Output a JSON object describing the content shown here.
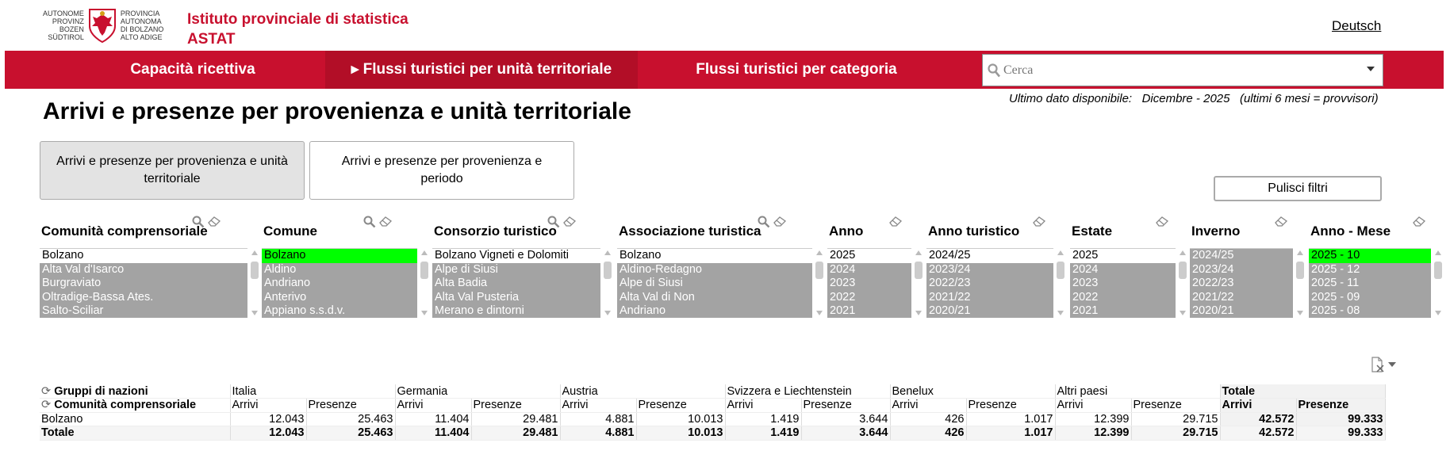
{
  "header": {
    "logo_left_lines": [
      "AUTONOME",
      "PROVINZ",
      "BOZEN",
      "SÜDTIROL"
    ],
    "logo_right_lines": [
      "PROVINCIA",
      "AUTONOMA",
      "DI BOLZANO",
      "ALTO ADIGE"
    ],
    "org_line1": "Istituto provinciale di statistica",
    "org_line2": "ASTAT",
    "language_link": "Deutsch"
  },
  "nav": {
    "items": [
      {
        "label": "Capacità ricettiva",
        "active": false
      },
      {
        "label": "▸ Flussi turistici per unità territoriale",
        "active": true
      },
      {
        "label": "Flussi turistici per categoria",
        "active": false
      }
    ],
    "search_placeholder": "Cerca"
  },
  "last_data": "Ultimo dato disponibile:   Dicembre - 2025   (ultimi 6 mesi = provvisori)",
  "page_title": "Arrivi e presenze per provenienza e unità territoriale",
  "tabs": [
    {
      "label": "Arrivi e presenze per provenienza e unità territoriale",
      "active": true
    },
    {
      "label": "Arrivi e presenze per provenienza e periodo",
      "active": false
    }
  ],
  "clear_filters_label": "Pulisci filtri",
  "filters": [
    {
      "title": "Comunità comprensoriale",
      "has_search": true,
      "items": [
        {
          "t": "Bolzano",
          "s": "sel"
        },
        {
          "t": "Alta Val d'Isarco",
          "s": "excl"
        },
        {
          "t": "Burgraviato",
          "s": "excl"
        },
        {
          "t": "Oltradige-Bassa Ates.",
          "s": "excl"
        },
        {
          "t": "Salto-Sciliar",
          "s": "excl"
        }
      ]
    },
    {
      "title": "Comune",
      "has_search": true,
      "items": [
        {
          "t": "Bolzano",
          "s": "green"
        },
        {
          "t": "Aldino",
          "s": "excl"
        },
        {
          "t": "Andriano",
          "s": "excl"
        },
        {
          "t": "Anterivo",
          "s": "excl"
        },
        {
          "t": "Appiano s.s.d.v.",
          "s": "excl"
        }
      ]
    },
    {
      "title": "Consorzio turistico",
      "has_search": true,
      "items": [
        {
          "t": "Bolzano Vigneti e Dolomiti",
          "s": "sel"
        },
        {
          "t": "Alpe di Siusi",
          "s": "excl"
        },
        {
          "t": "Alta Badia",
          "s": "excl"
        },
        {
          "t": "Alta Val Pusteria",
          "s": "excl"
        },
        {
          "t": "Merano e dintorni",
          "s": "excl"
        }
      ]
    },
    {
      "title": "Associazione turistica",
      "has_search": true,
      "items": [
        {
          "t": "Bolzano",
          "s": "sel"
        },
        {
          "t": "Aldino-Redagno",
          "s": "excl"
        },
        {
          "t": "Alpe di Siusi",
          "s": "excl"
        },
        {
          "t": "Alta Val di Non",
          "s": "excl"
        },
        {
          "t": "Andriano",
          "s": "excl"
        }
      ]
    },
    {
      "title": "Anno",
      "has_search": false,
      "items": [
        {
          "t": "2025",
          "s": "sel"
        },
        {
          "t": "2024",
          "s": "excl"
        },
        {
          "t": "2023",
          "s": "excl"
        },
        {
          "t": "2022",
          "s": "excl"
        },
        {
          "t": "2021",
          "s": "excl"
        }
      ]
    },
    {
      "title": "Anno turistico",
      "has_search": false,
      "items": [
        {
          "t": "2024/25",
          "s": "sel"
        },
        {
          "t": "2023/24",
          "s": "excl"
        },
        {
          "t": "2022/23",
          "s": "excl"
        },
        {
          "t": "2021/22",
          "s": "excl"
        },
        {
          "t": "2020/21",
          "s": "excl"
        }
      ]
    },
    {
      "title": "Estate",
      "has_search": false,
      "items": [
        {
          "t": "2025",
          "s": "sel"
        },
        {
          "t": "2024",
          "s": "excl"
        },
        {
          "t": "2023",
          "s": "excl"
        },
        {
          "t": "2022",
          "s": "excl"
        },
        {
          "t": "2021",
          "s": "excl"
        }
      ]
    },
    {
      "title": "Inverno",
      "has_search": false,
      "items": [
        {
          "t": "2024/25",
          "s": "excl"
        },
        {
          "t": "2023/24",
          "s": "excl"
        },
        {
          "t": "2022/23",
          "s": "excl"
        },
        {
          "t": "2021/22",
          "s": "excl"
        },
        {
          "t": "2020/21",
          "s": "excl"
        }
      ]
    },
    {
      "title": "Anno - Mese",
      "has_search": false,
      "items": [
        {
          "t": "2025 - 10",
          "s": "green"
        },
        {
          "t": "2025 - 12",
          "s": "excl"
        },
        {
          "t": "2025 - 11",
          "s": "excl"
        },
        {
          "t": "2025 - 09",
          "s": "excl"
        },
        {
          "t": "2025 - 08",
          "s": "excl"
        }
      ]
    }
  ],
  "pivot": {
    "dim_row1": "Gruppi di nazioni",
    "dim_row2": "Comunità comprensoriale",
    "groups": [
      "Italia",
      "Germania",
      "Austria",
      "Svizzera e Liechtenstein",
      "Benelux",
      "Altri paesi",
      "Totale"
    ],
    "measures": [
      "Arrivi",
      "Presenze"
    ],
    "rows": [
      {
        "label": "Bolzano",
        "values": [
          "12.043",
          "25.463",
          "11.404",
          "29.481",
          "4.881",
          "10.013",
          "1.419",
          "3.644",
          "426",
          "1.017",
          "12.399",
          "29.715",
          "42.572",
          "99.333"
        ]
      },
      {
        "label": "Totale",
        "values": [
          "12.043",
          "25.463",
          "11.404",
          "29.481",
          "4.881",
          "10.013",
          "1.419",
          "3.644",
          "426",
          "1.017",
          "12.399",
          "29.715",
          "42.572",
          "99.333"
        ]
      }
    ]
  },
  "colors": {
    "brand_red": "#c8102e",
    "selected_green": "#00ff00",
    "excluded_gray": "#a3a3a3"
  }
}
